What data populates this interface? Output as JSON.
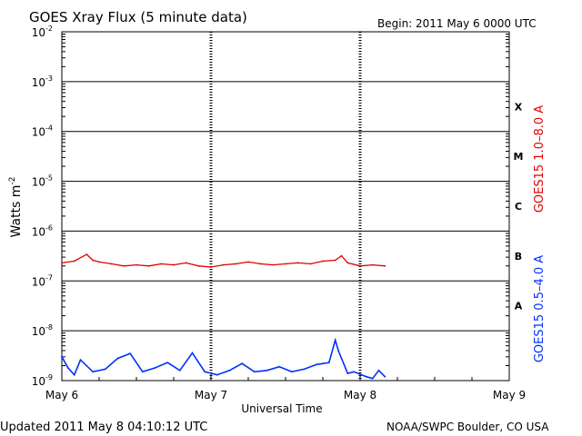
{
  "header": {
    "title": "GOES Xray Flux (5 minute data)",
    "begin": "Begin:  2011 May 6 0000 UTC"
  },
  "footer": {
    "updated": "Updated 2011 May  8 04:10:12 UTC",
    "credit": "NOAA/SWPC Boulder, CO USA"
  },
  "chart_data": {
    "type": "line",
    "title": "GOES Xray Flux (5 minute data)",
    "xlabel": "Universal Time",
    "ylabel": "Watts m",
    "ylabel_superscript": "-2",
    "yscale": "log",
    "ylim": [
      1e-09,
      0.01
    ],
    "y_ticks": [
      {
        "base": "10",
        "exp": "-2",
        "value": 0.01
      },
      {
        "base": "10",
        "exp": "-3",
        "value": 0.001
      },
      {
        "base": "10",
        "exp": "-4",
        "value": 0.0001
      },
      {
        "base": "10",
        "exp": "-5",
        "value": 1e-05
      },
      {
        "base": "10",
        "exp": "-6",
        "value": 1e-06
      },
      {
        "base": "10",
        "exp": "-7",
        "value": 1e-07
      },
      {
        "base": "10",
        "exp": "-8",
        "value": 1e-08
      },
      {
        "base": "10",
        "exp": "-9",
        "value": 1e-09
      }
    ],
    "x_ticks": [
      "May 6",
      "May 7",
      "May 8",
      "May 9"
    ],
    "xlim_days": [
      "2011-05-06",
      "2011-05-09"
    ],
    "flare_classes": [
      {
        "label": "X",
        "value": 0.0001
      },
      {
        "label": "M",
        "value": 1e-05
      },
      {
        "label": "C",
        "value": 1e-06
      },
      {
        "label": "B",
        "value": 1e-07
      },
      {
        "label": "A",
        "value": 1e-08
      }
    ],
    "grid": true,
    "series": [
      {
        "name": "GOES15 1.0–8.0 A",
        "color": "#e00000",
        "x": [
          "2011-05-06T00:00",
          "2011-05-06T02:00",
          "2011-05-06T04:00",
          "2011-05-06T05:00",
          "2011-05-06T06:00",
          "2011-05-06T08:00",
          "2011-05-06T10:00",
          "2011-05-06T12:00",
          "2011-05-06T14:00",
          "2011-05-06T16:00",
          "2011-05-06T18:00",
          "2011-05-06T20:00",
          "2011-05-06T22:00",
          "2011-05-07T00:00",
          "2011-05-07T02:00",
          "2011-05-07T04:00",
          "2011-05-07T06:00",
          "2011-05-07T08:00",
          "2011-05-07T10:00",
          "2011-05-07T12:00",
          "2011-05-07T14:00",
          "2011-05-07T16:00",
          "2011-05-07T18:00",
          "2011-05-07T20:00",
          "2011-05-07T21:00",
          "2011-05-07T22:00",
          "2011-05-08T00:00",
          "2011-05-08T02:00",
          "2011-05-08T04:00"
        ],
        "values": [
          2.3e-07,
          2.5e-07,
          3.4e-07,
          2.6e-07,
          2.4e-07,
          2.2e-07,
          2e-07,
          2.1e-07,
          2e-07,
          2.2e-07,
          2.1e-07,
          2.3e-07,
          2e-07,
          1.9e-07,
          2.1e-07,
          2.2e-07,
          2.4e-07,
          2.2e-07,
          2.1e-07,
          2.2e-07,
          2.3e-07,
          2.2e-07,
          2.5e-07,
          2.6e-07,
          3.2e-07,
          2.3e-07,
          2e-07,
          2.1e-07,
          2e-07
        ]
      },
      {
        "name": "GOES15 0.5–4.0 A",
        "color": "#0030ff",
        "x": [
          "2011-05-06T00:00",
          "2011-05-06T01:00",
          "2011-05-06T02:00",
          "2011-05-06T03:00",
          "2011-05-06T05:00",
          "2011-05-06T07:00",
          "2011-05-06T09:00",
          "2011-05-06T11:00",
          "2011-05-06T13:00",
          "2011-05-06T15:00",
          "2011-05-06T17:00",
          "2011-05-06T19:00",
          "2011-05-06T21:00",
          "2011-05-06T23:00",
          "2011-05-07T01:00",
          "2011-05-07T03:00",
          "2011-05-07T05:00",
          "2011-05-07T07:00",
          "2011-05-07T09:00",
          "2011-05-07T11:00",
          "2011-05-07T13:00",
          "2011-05-07T15:00",
          "2011-05-07T17:00",
          "2011-05-07T19:00",
          "2011-05-07T20:00",
          "2011-05-07T20:30",
          "2011-05-07T21:00",
          "2011-05-07T22:00",
          "2011-05-07T23:00",
          "2011-05-08T01:00",
          "2011-05-08T02:00",
          "2011-05-08T03:00",
          "2011-05-08T04:00"
        ],
        "values": [
          3e-09,
          1.8e-09,
          1.3e-09,
          2.6e-09,
          1.5e-09,
          1.7e-09,
          2.8e-09,
          3.5e-09,
          1.5e-09,
          1.8e-09,
          2.3e-09,
          1.6e-09,
          3.6e-09,
          1.5e-09,
          1.3e-09,
          1.6e-09,
          2.2e-09,
          1.5e-09,
          1.6e-09,
          1.9e-09,
          1.5e-09,
          1.7e-09,
          2.1e-09,
          2.3e-09,
          6.5e-09,
          4e-09,
          2.8e-09,
          1.4e-09,
          1.5e-09,
          1.2e-09,
          1.1e-09,
          1.6e-09,
          1.2e-09
        ]
      }
    ]
  }
}
